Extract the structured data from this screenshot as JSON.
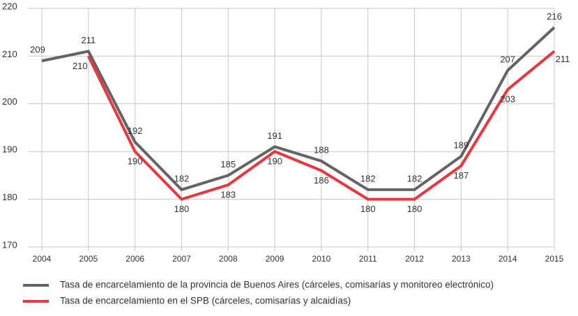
{
  "chart_data": {
    "type": "line",
    "categories": [
      "2004",
      "2005",
      "2006",
      "2007",
      "2008",
      "2009",
      "2010",
      "2011",
      "2012",
      "2013",
      "2014",
      "2015"
    ],
    "series": [
      {
        "name": "Tasa de encarcelamiento de la provincia de Buenos Aires (cárceles, comisarías y monitoreo electrónico)",
        "color": "#646464",
        "values": [
          209,
          211,
          192,
          182,
          185,
          191,
          188,
          182,
          182,
          189,
          207,
          216
        ]
      },
      {
        "name": "Tasa de encarcelamiento en el SPB (cárceles, comisarías y alcaidías)",
        "color": "#e8373f",
        "values": [
          null,
          210,
          190,
          180,
          183,
          190,
          186,
          180,
          180,
          187,
          203,
          211
        ]
      }
    ],
    "ylim": [
      170,
      220
    ],
    "yticks": [
      170,
      180,
      190,
      200,
      210,
      220
    ],
    "grid": true
  }
}
